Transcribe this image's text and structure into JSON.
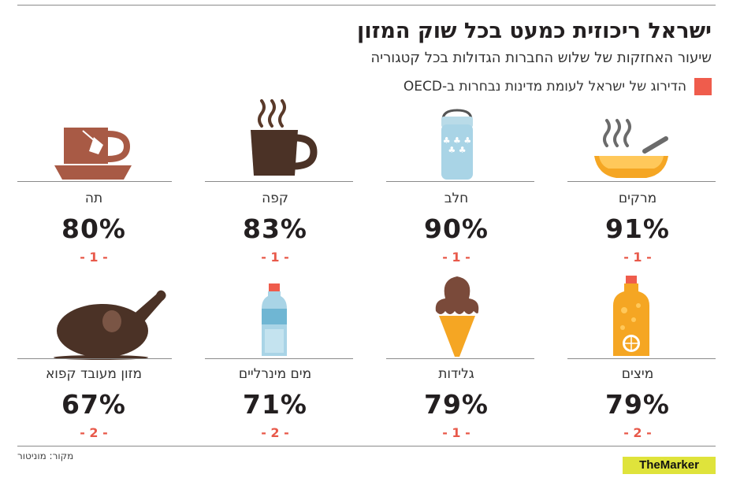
{
  "header": {
    "title": "ישראל ריכוזית כמעט בכל שוק המזון",
    "subtitle": "שיעור האחזקות של שלוש החברות הגדולות בכל קטגוריה",
    "legend_label": "הדירוג של ישראל לעומת מדינות נבחרות ב-OECD",
    "legend_color": "#ef5c4c"
  },
  "chart_data": {
    "type": "table",
    "rows": [
      {
        "category": "מרקים",
        "share": 91,
        "share_label": "91%",
        "rank_label": "- 1 -",
        "icon": "soup-bowl-icon"
      },
      {
        "category": "חלב",
        "share": 90,
        "share_label": "90%",
        "rank_label": "- 1 -",
        "icon": "milk-jug-icon"
      },
      {
        "category": "קפה",
        "share": 83,
        "share_label": "83%",
        "rank_label": "- 1 -",
        "icon": "coffee-mug-icon"
      },
      {
        "category": "תה",
        "share": 80,
        "share_label": "80%",
        "rank_label": "- 1 -",
        "icon": "tea-cup-icon"
      },
      {
        "category": "מיצים",
        "share": 79,
        "share_label": "79%",
        "rank_label": "- 2 -",
        "icon": "juice-bottle-icon"
      },
      {
        "category": "גלידות",
        "share": 79,
        "share_label": "79%",
        "rank_label": "- 1 -",
        "icon": "ice-cream-icon"
      },
      {
        "category": "מים מינרליים",
        "share": 71,
        "share_label": "71%",
        "rank_label": "- 2 -",
        "icon": "water-bottle-icon"
      },
      {
        "category": "מזון מעובד קפוא",
        "share": 67,
        "share_label": "67%",
        "rank_label": "- 2 -",
        "icon": "roast-chicken-icon"
      }
    ]
  },
  "footer": {
    "source": "מקור: מוניטור",
    "brand": "TheMarker"
  }
}
